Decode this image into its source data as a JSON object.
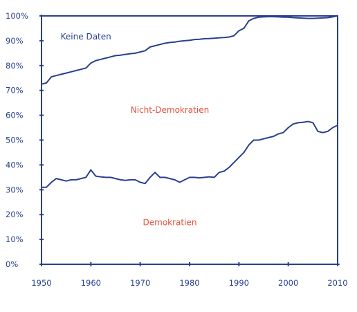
{
  "chart_data": {
    "type": "area",
    "x_ticks": [
      "1950",
      "1960",
      "1970",
      "1980",
      "1990",
      "2000",
      "2010"
    ],
    "y_ticks": [
      "0%",
      "10%",
      "20%",
      "30%",
      "40%",
      "50%",
      "60%",
      "70%",
      "80%",
      "90%",
      "100%"
    ],
    "xlim": [
      1950,
      2010
    ],
    "ylim": [
      0,
      100
    ],
    "region_labels": {
      "no_data": "Keine Daten",
      "non_democracies": "Nicht-Demokratien",
      "democracies": "Demokratien"
    },
    "series": [
      {
        "x": [
          1950,
          1951,
          1952,
          1953,
          1954,
          1955,
          1956,
          1957,
          1958,
          1959,
          1960,
          1961,
          1962,
          1963,
          1964,
          1965,
          1966,
          1967,
          1968,
          1969,
          1970,
          1971,
          1972,
          1973,
          1974,
          1975,
          1976,
          1977,
          1978,
          1979,
          1980,
          1981,
          1982,
          1983,
          1984,
          1985,
          1986,
          1987,
          1988,
          1989,
          1990,
          1991,
          1992,
          1993,
          1994,
          1995,
          1996,
          1997,
          1998,
          1999,
          2000,
          2001,
          2002,
          2003,
          2004,
          2005,
          2006,
          2007,
          2008,
          2009,
          2010
        ],
        "y": [
          31,
          31,
          33,
          34.5,
          34,
          33.5,
          34,
          34,
          34.5,
          35,
          38,
          35.5,
          35.2,
          35,
          35,
          34.5,
          34,
          33.8,
          34,
          34,
          33,
          32.5,
          35,
          37,
          35,
          35,
          34.5,
          34,
          33,
          34,
          35,
          35,
          34.8,
          35,
          35.2,
          35,
          37,
          37.5,
          39,
          41,
          43,
          45,
          48,
          50,
          50,
          50.5,
          51,
          51.5,
          52.5,
          53,
          55,
          56.5,
          57,
          57.2,
          57.5,
          57,
          53.5,
          53,
          53.5,
          55,
          56
        ]
      },
      {
        "x": [
          1950,
          1951,
          1952,
          1953,
          1954,
          1955,
          1956,
          1957,
          1958,
          1959,
          1960,
          1961,
          1962,
          1963,
          1964,
          1965,
          1966,
          1967,
          1968,
          1969,
          1970,
          1971,
          1972,
          1973,
          1974,
          1975,
          1976,
          1977,
          1978,
          1979,
          1980,
          1981,
          1982,
          1983,
          1984,
          1985,
          1986,
          1987,
          1988,
          1989,
          1990,
          1991,
          1992,
          1993,
          1994,
          1995,
          1996,
          1997,
          1998,
          1999,
          2000,
          2001,
          2002,
          2003,
          2004,
          2005,
          2006,
          2007,
          2008,
          2009,
          2010
        ],
        "y": [
          72.5,
          73,
          75.5,
          76,
          76.5,
          77,
          77.5,
          78,
          78.5,
          79,
          81,
          82,
          82.5,
          83,
          83.5,
          84,
          84.2,
          84.5,
          84.8,
          85,
          85.5,
          86,
          87.5,
          88,
          88.5,
          89,
          89.3,
          89.5,
          89.8,
          90,
          90.2,
          90.5,
          90.6,
          90.8,
          90.9,
          91,
          91.2,
          91.3,
          91.5,
          92,
          94,
          95,
          98,
          99,
          99.5,
          99.6,
          99.7,
          99.7,
          99.6,
          99.5,
          99.5,
          99.3,
          99.2,
          99.1,
          99,
          99,
          99.1,
          99.2,
          99.3,
          99.6,
          100
        ]
      }
    ]
  }
}
